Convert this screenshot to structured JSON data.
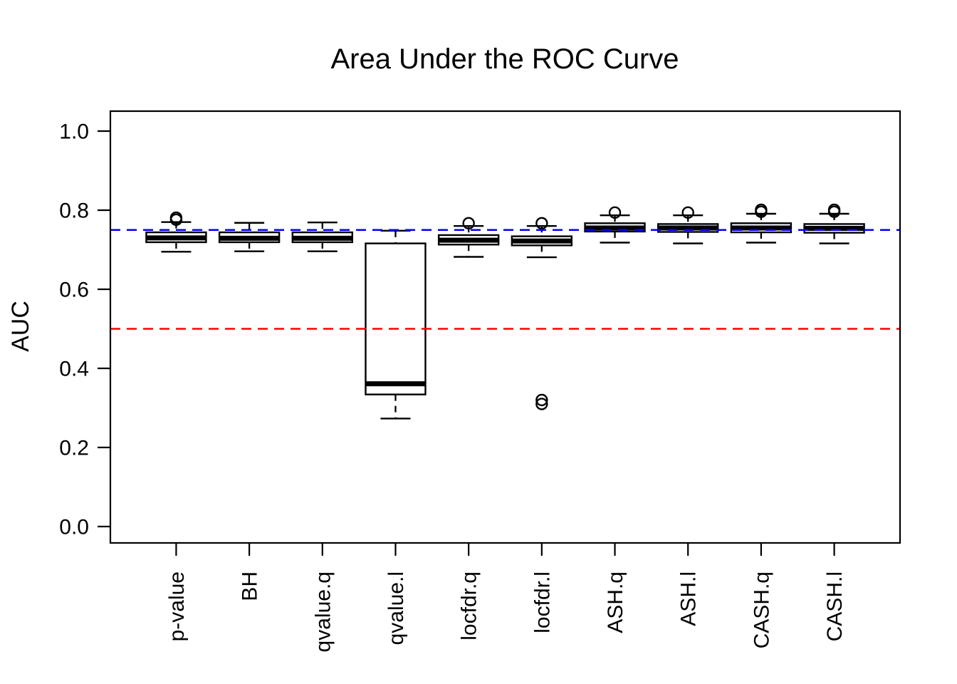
{
  "chart_data": {
    "type": "boxplot",
    "title": "Area Under the ROC Curve",
    "ylabel": "AUC",
    "xlabel": "",
    "ylim": [
      0,
      1.04
    ],
    "yticks": [
      0,
      0.2,
      0.4,
      0.6,
      0.8,
      1
    ],
    "grid": false,
    "legend": false,
    "axis_color": "#000000",
    "box_color": "#000000",
    "categories": [
      "p-value",
      "BH",
      "qvalue.q",
      "qvalue.l",
      "locfdr.q",
      "locfdr.l",
      "ASH.q",
      "ASH.l",
      "CASH.q",
      "CASH.l"
    ],
    "series": [
      {
        "name": "p-value",
        "whisker_low": 0.695,
        "q1": 0.719,
        "median": 0.73,
        "q3": 0.744,
        "whisker_high": 0.77,
        "outliers": [
          0.776,
          0.781
        ]
      },
      {
        "name": "BH",
        "whisker_low": 0.696,
        "q1": 0.719,
        "median": 0.729,
        "q3": 0.744,
        "whisker_high": 0.768,
        "outliers": []
      },
      {
        "name": "qvalue.q",
        "whisker_low": 0.696,
        "q1": 0.719,
        "median": 0.729,
        "q3": 0.744,
        "whisker_high": 0.769,
        "outliers": []
      },
      {
        "name": "qvalue.l",
        "whisker_low": 0.273,
        "q1": 0.334,
        "median": 0.361,
        "q3": 0.716,
        "whisker_high": 0.748,
        "outliers": []
      },
      {
        "name": "locfdr.q",
        "whisker_low": 0.682,
        "q1": 0.713,
        "median": 0.724,
        "q3": 0.737,
        "whisker_high": 0.76,
        "outliers": [
          0.767
        ]
      },
      {
        "name": "locfdr.l",
        "whisker_low": 0.681,
        "q1": 0.711,
        "median": 0.722,
        "q3": 0.734,
        "whisker_high": 0.76,
        "outliers": [
          0.767,
          0.32,
          0.31
        ]
      },
      {
        "name": "ASH.q",
        "whisker_low": 0.718,
        "q1": 0.746,
        "median": 0.755,
        "q3": 0.767,
        "whisker_high": 0.787,
        "outliers": [
          0.794
        ]
      },
      {
        "name": "ASH.l",
        "whisker_low": 0.716,
        "q1": 0.745,
        "median": 0.755,
        "q3": 0.765,
        "whisker_high": 0.787,
        "outliers": [
          0.794
        ]
      },
      {
        "name": "CASH.q",
        "whisker_low": 0.718,
        "q1": 0.744,
        "median": 0.755,
        "q3": 0.767,
        "whisker_high": 0.791,
        "outliers": [
          0.796,
          0.801
        ]
      },
      {
        "name": "CASH.l",
        "whisker_low": 0.716,
        "q1": 0.743,
        "median": 0.754,
        "q3": 0.765,
        "whisker_high": 0.791,
        "outliers": [
          0.796,
          0.801
        ]
      }
    ],
    "reference_lines": [
      {
        "label": "blue-reference",
        "value": 0.75,
        "color": "#0000FF",
        "style": "dashed"
      },
      {
        "label": "red-reference",
        "value": 0.5,
        "color": "#FF0000",
        "style": "dashed"
      }
    ]
  }
}
